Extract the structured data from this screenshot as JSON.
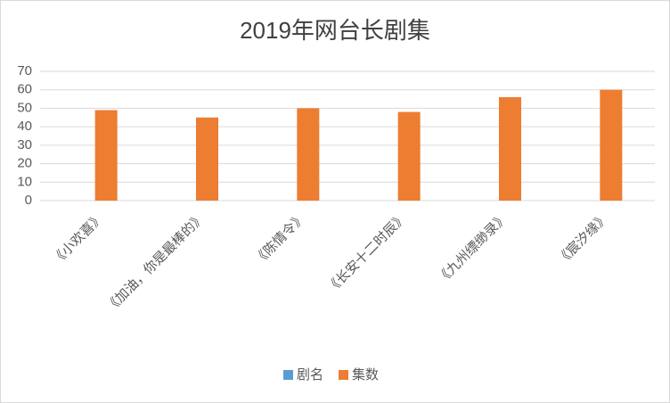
{
  "chart_data": {
    "type": "bar",
    "title": "2019年网台长剧集",
    "categories": [
      "《小欢喜》",
      "《加油，你是最棒的》",
      "《陈情令》",
      "《长安十二时辰》",
      "《九州缥缈录》",
      "《宸汐缘》"
    ],
    "series": [
      {
        "name": "剧名",
        "color": "#5b9bd5",
        "values": [
          null,
          null,
          null,
          null,
          null,
          null
        ]
      },
      {
        "name": "集数",
        "color": "#ed7d31",
        "values": [
          49,
          45,
          50,
          48,
          56,
          60
        ]
      }
    ],
    "ylim": [
      0,
      70
    ],
    "yticks": [
      0,
      10,
      20,
      30,
      40,
      50,
      60,
      70
    ],
    "grid": true,
    "legend": "bottom"
  }
}
